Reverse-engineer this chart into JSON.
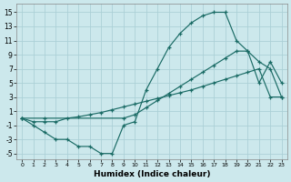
{
  "xlabel": "Humidex (Indice chaleur)",
  "background_color": "#cce8ec",
  "grid_color": "#aacfd5",
  "line_color": "#1a6b65",
  "xlim_min": -0.5,
  "xlim_max": 23.5,
  "ylim_min": -5.8,
  "ylim_max": 16.2,
  "xticks": [
    0,
    1,
    2,
    3,
    4,
    5,
    6,
    7,
    8,
    9,
    10,
    11,
    12,
    13,
    14,
    15,
    16,
    17,
    18,
    19,
    20,
    21,
    22,
    23
  ],
  "yticks": [
    -5,
    -3,
    -1,
    1,
    3,
    5,
    7,
    9,
    11,
    13,
    15
  ],
  "line1_x": [
    0,
    1,
    2,
    3,
    4,
    5,
    6,
    7,
    8,
    9,
    10,
    11,
    12,
    13,
    14,
    15,
    16,
    17,
    18,
    19,
    20,
    21,
    22,
    23
  ],
  "line1_y": [
    0,
    -1,
    -2,
    -3,
    -3,
    -4,
    -4,
    -5,
    -5,
    -1,
    -0.5,
    4,
    7,
    10,
    12,
    13.5,
    14.5,
    15,
    15,
    11,
    9.5,
    5,
    8,
    5
  ],
  "line2_x": [
    0,
    1,
    2,
    3,
    4,
    5,
    6,
    7,
    8,
    9,
    10,
    11,
    12,
    13,
    14,
    15,
    16,
    17,
    18,
    19,
    20,
    21,
    22,
    23
  ],
  "line2_y": [
    0,
    -0.5,
    -0.5,
    -0.5,
    0,
    0.2,
    0.5,
    0.8,
    1.2,
    1.6,
    2.0,
    2.4,
    2.8,
    3.2,
    3.6,
    4.0,
    4.5,
    5.0,
    5.5,
    6.0,
    6.5,
    7.0,
    3,
    3
  ],
  "line3_x": [
    0,
    2,
    9,
    10,
    11,
    12,
    13,
    14,
    15,
    16,
    17,
    18,
    19,
    20,
    21,
    22,
    23
  ],
  "line3_y": [
    0,
    0,
    0,
    0.5,
    1.5,
    2.5,
    3.5,
    4.5,
    5.5,
    6.5,
    7.5,
    8.5,
    9.5,
    9.5,
    8,
    7,
    3
  ]
}
